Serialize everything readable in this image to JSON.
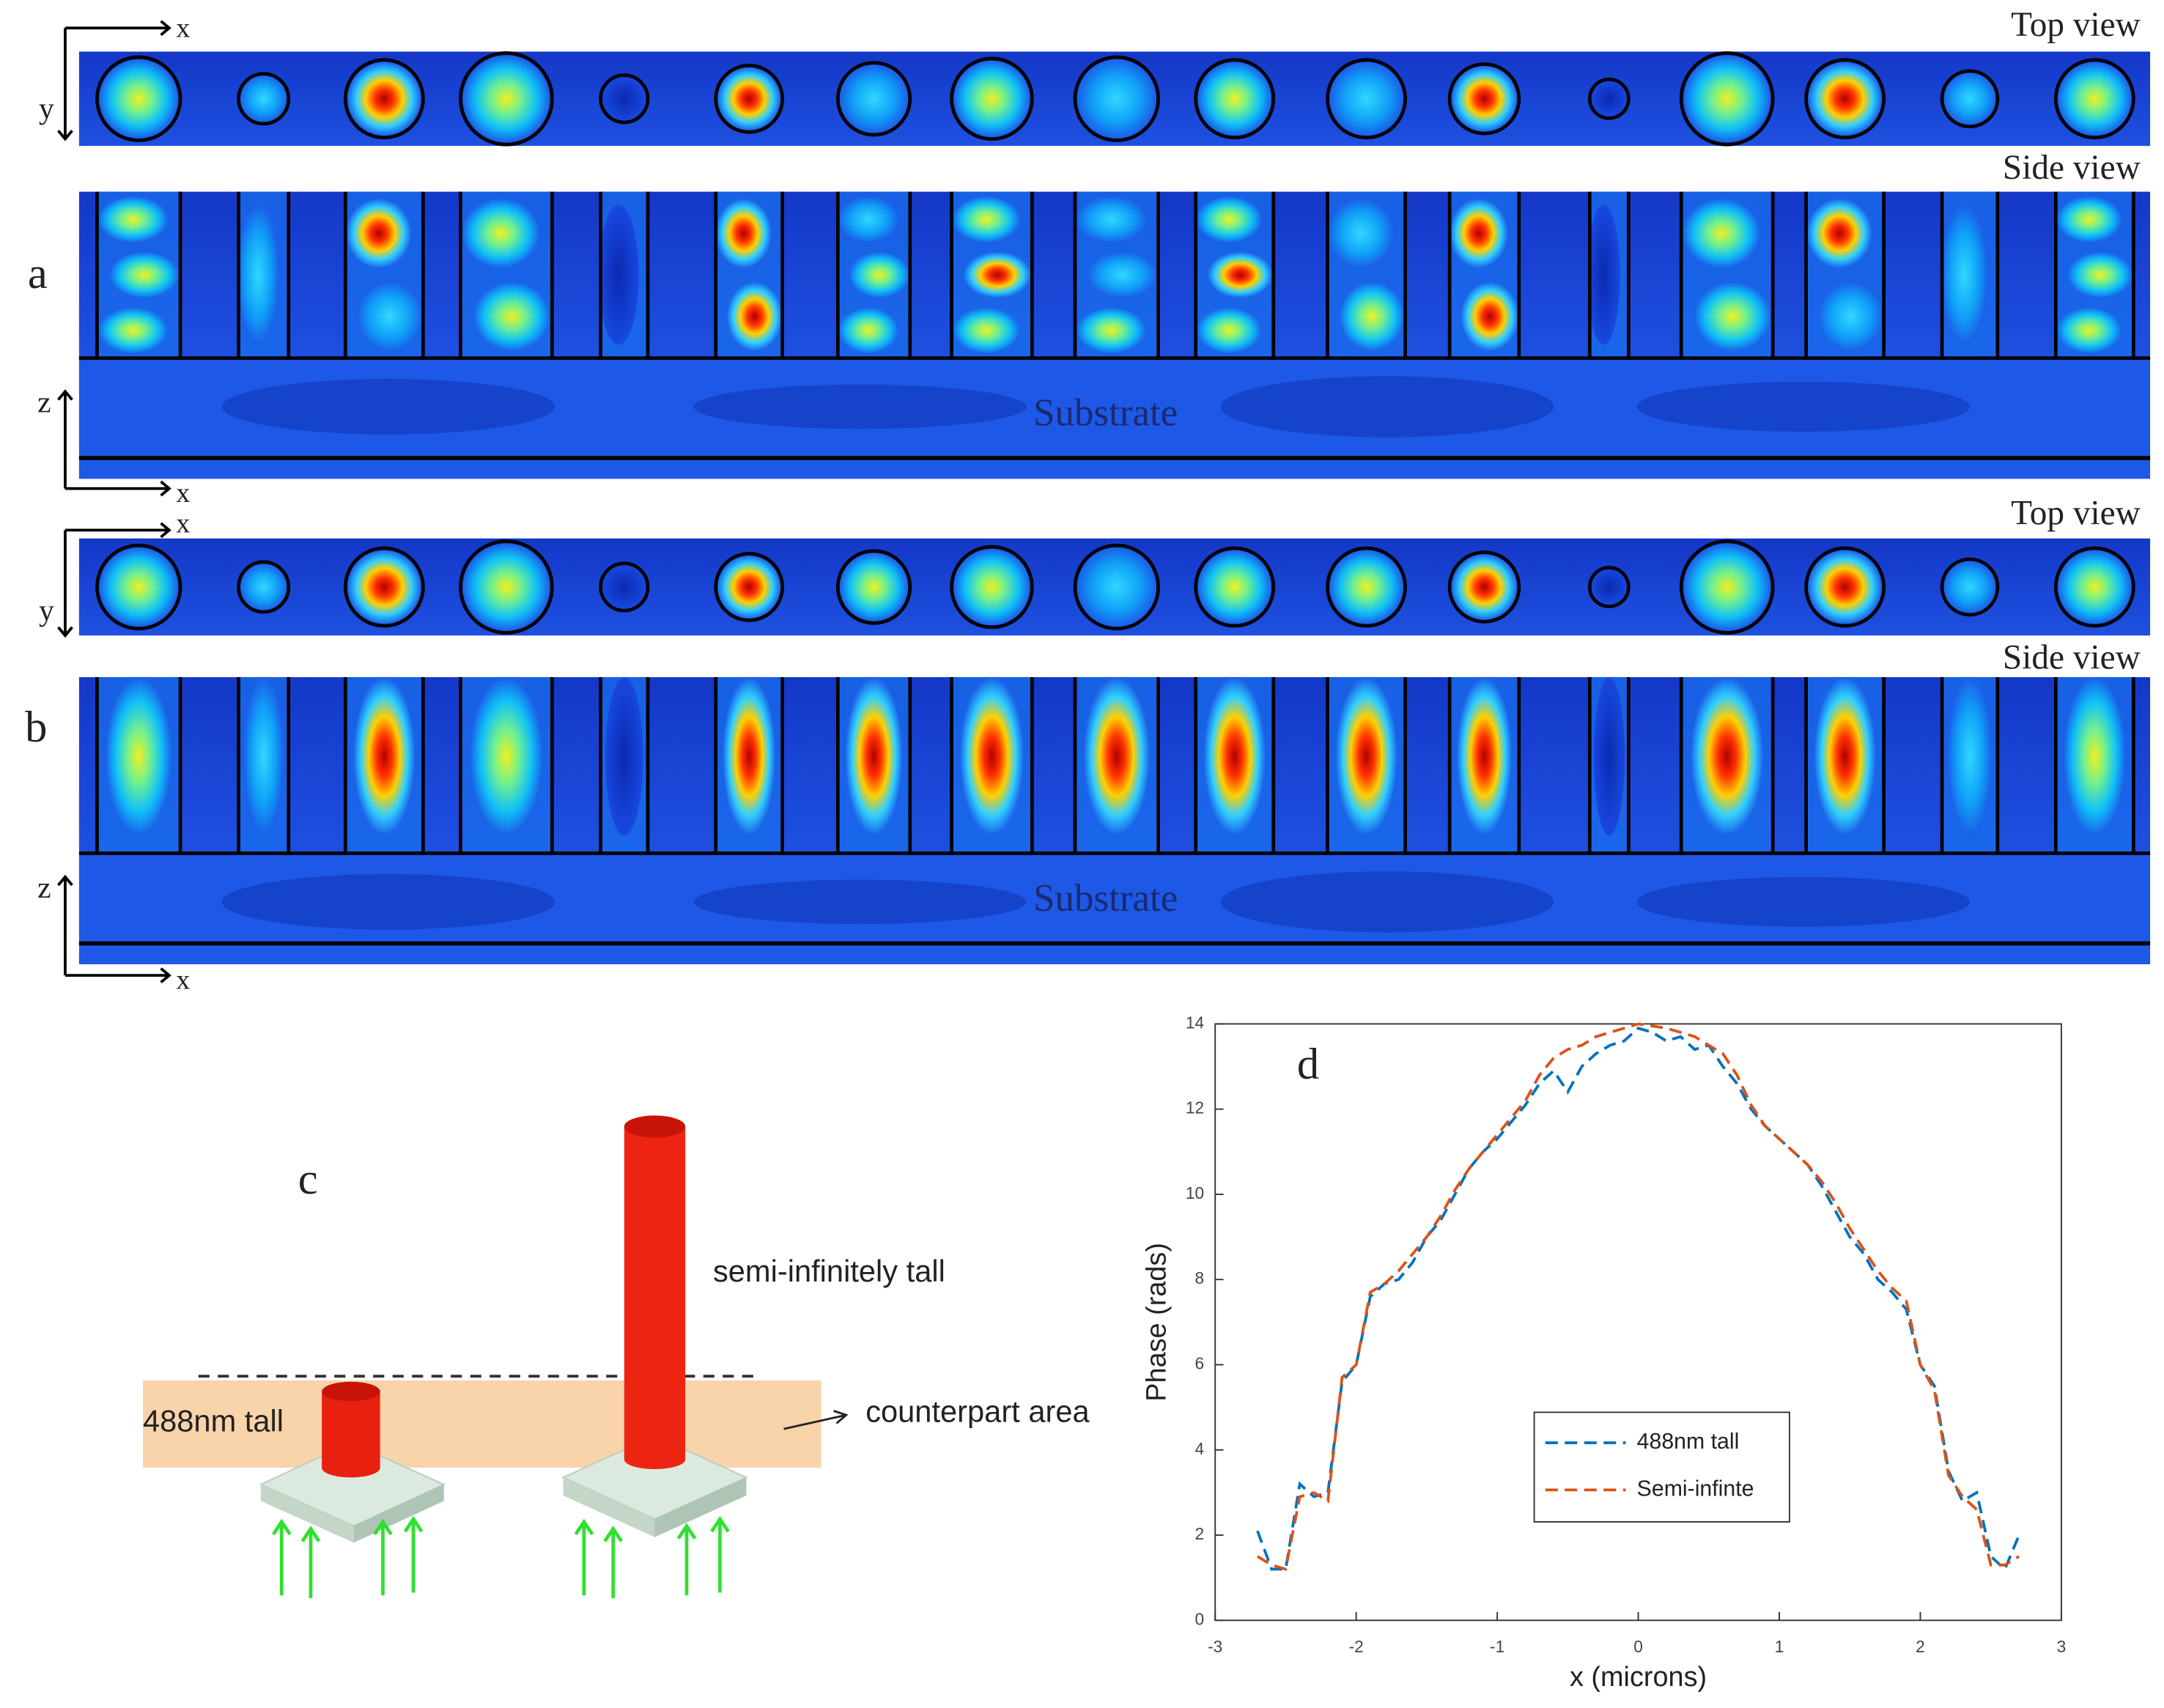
{
  "panel_a": {
    "label": "a",
    "top_view": "Top view",
    "side_view": "Side view",
    "substrate": "Substrate",
    "axes": {
      "x_top": "x",
      "y": "y",
      "z": "z",
      "x_side": "x"
    }
  },
  "panel_b": {
    "label": "b",
    "top_view": "Top view",
    "side_view": "Side view",
    "substrate": "Substrate",
    "axes": {
      "x_top": "x",
      "y": "y",
      "z": "z",
      "x_side": "x"
    }
  },
  "panel_c": {
    "label": "c",
    "tall_label": "semi-infinitely tall",
    "short_label": "488nm tall",
    "area_label": "counterpart area"
  },
  "chart_data": {
    "type": "line",
    "annotation": "d",
    "xlabel": "x (microns)",
    "ylabel": "Phase (rads)",
    "xlim": [
      -3,
      3
    ],
    "ylim": [
      0,
      14
    ],
    "xticks": [
      -3,
      -2,
      -1,
      0,
      1,
      2,
      3
    ],
    "yticks": [
      0,
      2,
      4,
      6,
      8,
      10,
      12,
      14
    ],
    "legend": "lower center",
    "x": [
      -2.7,
      -2.6,
      -2.5,
      -2.4,
      -2.3,
      -2.2,
      -2.1,
      -2.0,
      -1.9,
      -1.8,
      -1.7,
      -1.6,
      -1.5,
      -1.4,
      -1.3,
      -1.2,
      -1.1,
      -1.0,
      -0.9,
      -0.8,
      -0.7,
      -0.6,
      -0.5,
      -0.4,
      -0.3,
      -0.2,
      -0.1,
      0,
      0.1,
      0.2,
      0.3,
      0.4,
      0.5,
      0.6,
      0.7,
      0.8,
      0.9,
      1.0,
      1.1,
      1.2,
      1.3,
      1.4,
      1.5,
      1.6,
      1.7,
      1.8,
      1.9,
      2.0,
      2.1,
      2.2,
      2.3,
      2.4,
      2.5,
      2.6,
      2.7
    ],
    "series": [
      {
        "name": "488nm tall",
        "color": "#0072bd",
        "values": [
          2.1,
          1.2,
          1.2,
          3.2,
          2.9,
          3.0,
          5.6,
          6.0,
          7.6,
          7.9,
          8.0,
          8.4,
          9.0,
          9.4,
          10.0,
          10.6,
          11.0,
          11.3,
          11.7,
          12.1,
          12.6,
          12.9,
          12.4,
          13.0,
          13.3,
          13.5,
          13.6,
          13.9,
          13.8,
          13.6,
          13.7,
          13.4,
          13.5,
          13.0,
          12.6,
          12.0,
          11.6,
          11.3,
          11.0,
          10.7,
          10.2,
          9.6,
          9.0,
          8.6,
          8.0,
          7.7,
          7.3,
          6.0,
          5.5,
          3.5,
          2.8,
          3.0,
          1.5,
          1.2,
          2.0
        ]
      },
      {
        "name": "Semi-infinte",
        "color": "#d95319",
        "values": [
          1.5,
          1.3,
          1.2,
          2.9,
          3.0,
          2.8,
          5.7,
          6.0,
          7.7,
          7.9,
          8.2,
          8.6,
          9.0,
          9.5,
          10.1,
          10.6,
          11.0,
          11.4,
          11.8,
          12.2,
          12.8,
          13.2,
          13.4,
          13.5,
          13.7,
          13.8,
          13.9,
          14.0,
          13.95,
          13.9,
          13.8,
          13.7,
          13.5,
          13.3,
          12.8,
          12.1,
          11.6,
          11.3,
          11.0,
          10.7,
          10.3,
          9.8,
          9.2,
          8.7,
          8.2,
          7.8,
          7.5,
          6.0,
          5.4,
          3.4,
          2.9,
          2.6,
          1.3,
          1.3,
          1.5
        ]
      }
    ]
  }
}
